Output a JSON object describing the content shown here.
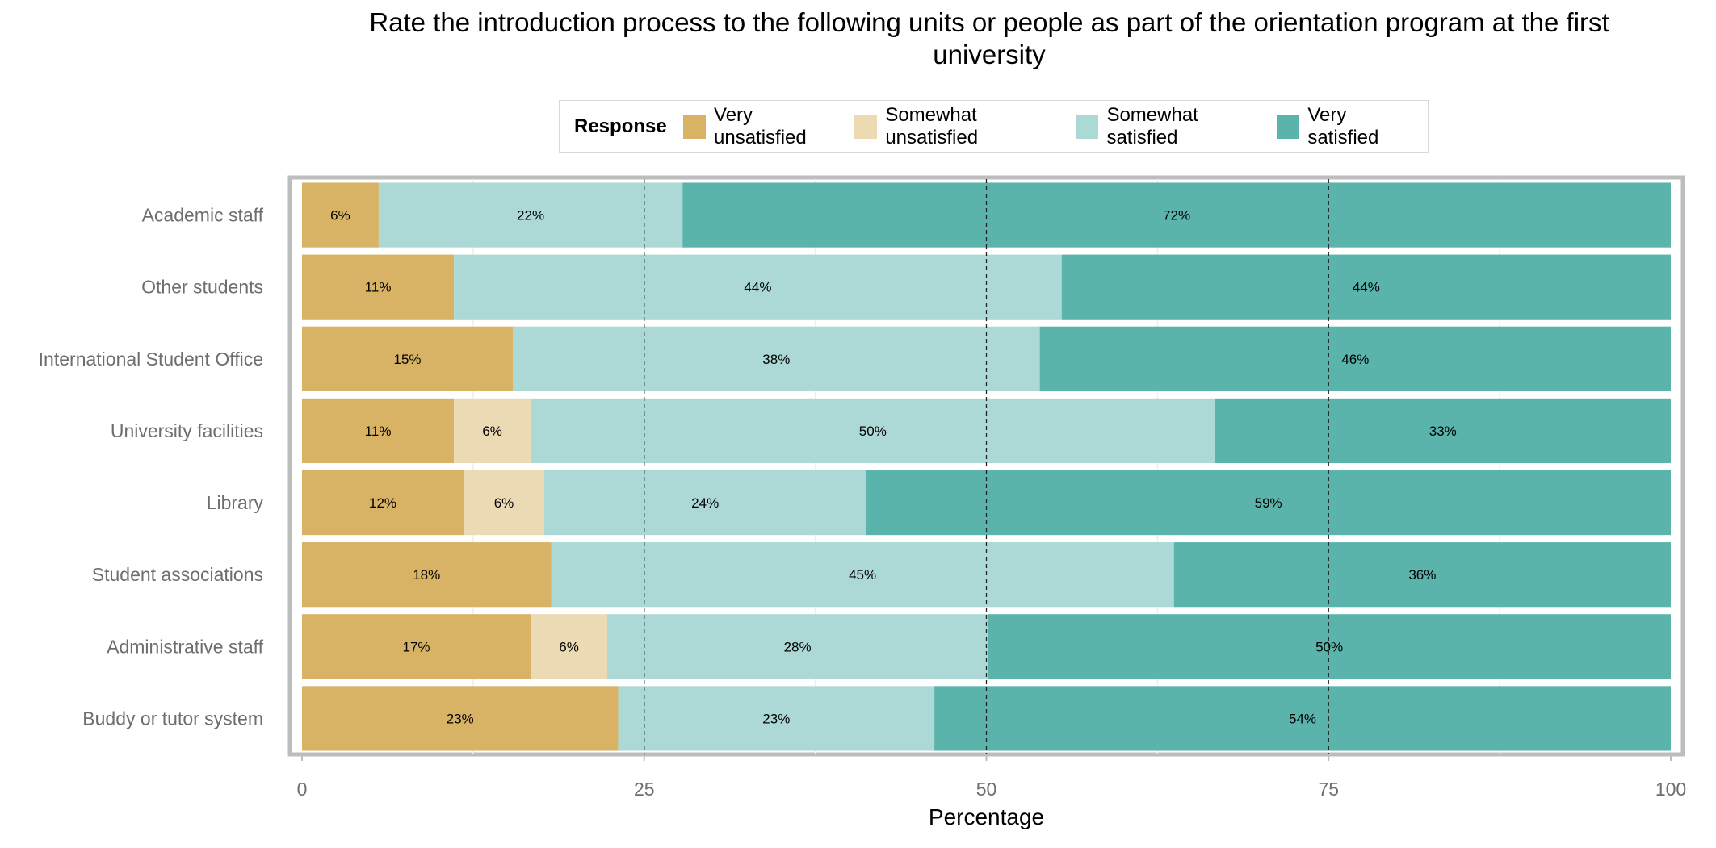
{
  "chart_data": {
    "type": "bar",
    "orientation": "horizontal",
    "stacked": true,
    "title_lines": [
      "Rate the introduction process to the following units or people as part of the orientation program at the first",
      "university"
    ],
    "xlabel": "Percentage",
    "ylabel": "",
    "xlim": [
      0,
      100
    ],
    "xticks": [
      0,
      25,
      50,
      75,
      100
    ],
    "reference_lines": [
      25,
      50,
      75
    ],
    "legend": {
      "title": "Response",
      "placement": "top"
    },
    "categories": [
      "Academic staff",
      "Other students",
      "International Student Office",
      "University facilities",
      "Library",
      "Student associations",
      "Administrative staff",
      "Buddy or tutor system"
    ],
    "series": [
      {
        "name": "Very unsatisfied",
        "color": "#d8b365",
        "values": [
          5.6,
          11.1,
          15.4,
          11.1,
          11.8,
          18.2,
          16.7,
          23.1
        ],
        "labels": [
          "6%",
          "11%",
          "15%",
          "11%",
          "12%",
          "18%",
          "17%",
          "23%"
        ]
      },
      {
        "name": "Somewhat unsatisfied",
        "color": "#ebdab4",
        "values": [
          0,
          0,
          0,
          5.6,
          5.9,
          0,
          5.6,
          0
        ],
        "labels": [
          "",
          "",
          "",
          "6%",
          "6%",
          "",
          "6%",
          ""
        ]
      },
      {
        "name": "Somewhat satisfied",
        "color": "#acd9d5",
        "values": [
          22.2,
          44.4,
          38.5,
          50.0,
          23.5,
          45.5,
          27.8,
          23.1
        ],
        "labels": [
          "22%",
          "44%",
          "38%",
          "50%",
          "24%",
          "45%",
          "28%",
          "23%"
        ]
      },
      {
        "name": "Very satisfied",
        "color": "#5ab4ac",
        "values": [
          72.2,
          44.5,
          46.1,
          33.3,
          58.8,
          36.3,
          49.9,
          53.8
        ],
        "labels": [
          "72%",
          "44%",
          "46%",
          "33%",
          "59%",
          "36%",
          "50%",
          "54%"
        ]
      }
    ]
  }
}
